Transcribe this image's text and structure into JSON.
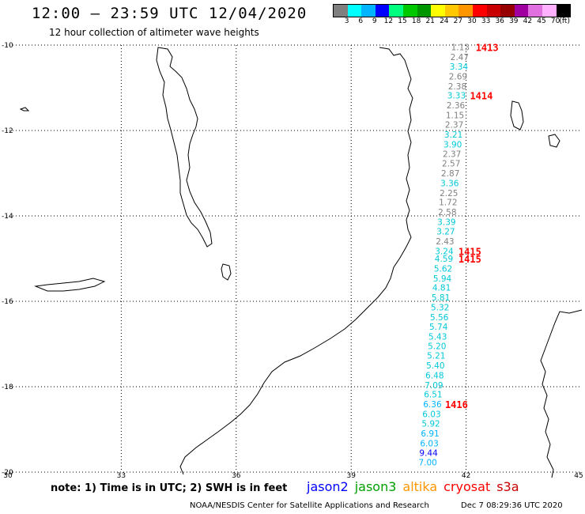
{
  "header": {
    "title": "12:00 – 23:59 UTC 12/04/2020",
    "subtitle": "12 hour collection of altimeter wave heights"
  },
  "legend": {
    "colors": [
      "#7f7f7f",
      "#00ffff",
      "#00b4ff",
      "#0000ff",
      "#00ff7f",
      "#00c800",
      "#009600",
      "#ffff00",
      "#ffc800",
      "#ff9600",
      "#ff0000",
      "#c80000",
      "#960000",
      "#a000a0",
      "#e070e0",
      "#ffb0ff",
      "#000000"
    ],
    "labels": [
      "3",
      "6",
      "9",
      "12",
      "15",
      "18",
      "21",
      "24",
      "27",
      "30",
      "33",
      "36",
      "39",
      "42",
      "45",
      "70",
      "(ft)"
    ]
  },
  "axes": {
    "lon_labels": [
      "30",
      "33",
      "36",
      "39",
      "42",
      "45"
    ],
    "lat_labels": [
      "-10",
      "-12",
      "-14",
      "-16",
      "-18",
      "-20"
    ]
  },
  "observations": [
    {
      "v": "1.13",
      "c": "#808080",
      "lat": -10.05,
      "lon": 41.85
    },
    {
      "v": "2.47",
      "c": "#808080",
      "lat": -10.28,
      "lon": 41.83
    },
    {
      "v": "3.34",
      "c": "#00c8d8",
      "lat": -10.5,
      "lon": 41.81
    },
    {
      "v": "2.69",
      "c": "#808080",
      "lat": -10.73,
      "lon": 41.79
    },
    {
      "v": "2.38",
      "c": "#808080",
      "lat": -10.96,
      "lon": 41.77
    },
    {
      "v": "3.33",
      "c": "#00c8d8",
      "lat": -11.18,
      "lon": 41.75
    },
    {
      "v": "2.36",
      "c": "#808080",
      "lat": -11.41,
      "lon": 41.73
    },
    {
      "v": "1.15",
      "c": "#808080",
      "lat": -11.64,
      "lon": 41.71
    },
    {
      "v": "2.37",
      "c": "#808080",
      "lat": -11.86,
      "lon": 41.69
    },
    {
      "v": "3.21",
      "c": "#00c8d8",
      "lat": -12.09,
      "lon": 41.67
    },
    {
      "v": "3.90",
      "c": "#00c8d8",
      "lat": -12.32,
      "lon": 41.65
    },
    {
      "v": "2.37",
      "c": "#808080",
      "lat": -12.55,
      "lon": 41.63
    },
    {
      "v": "2.57",
      "c": "#808080",
      "lat": -12.77,
      "lon": 41.61
    },
    {
      "v": "2.87",
      "c": "#808080",
      "lat": -13.0,
      "lon": 41.59
    },
    {
      "v": "3.36",
      "c": "#00c8d8",
      "lat": -13.23,
      "lon": 41.57
    },
    {
      "v": "2.25",
      "c": "#808080",
      "lat": -13.46,
      "lon": 41.55
    },
    {
      "v": "1.72",
      "c": "#808080",
      "lat": -13.68,
      "lon": 41.53
    },
    {
      "v": "2.58",
      "c": "#808080",
      "lat": -13.91,
      "lon": 41.51
    },
    {
      "v": "3.39",
      "c": "#00c8d8",
      "lat": -14.14,
      "lon": 41.49
    },
    {
      "v": "3.27",
      "c": "#00c8d8",
      "lat": -14.36,
      "lon": 41.47
    },
    {
      "v": "2.43",
      "c": "#808080",
      "lat": -14.59,
      "lon": 41.45
    },
    {
      "v": "3.24",
      "c": "#00c8d8",
      "lat": -14.82,
      "lon": 41.43
    },
    {
      "v": "4.59",
      "c": "#00c8d8",
      "lat": -15.0,
      "lon": 41.42
    },
    {
      "v": "5.62",
      "c": "#00c8d8",
      "lat": -15.23,
      "lon": 41.4
    },
    {
      "v": "5.94",
      "c": "#00c8d8",
      "lat": -15.46,
      "lon": 41.38
    },
    {
      "v": "4.81",
      "c": "#00c8d8",
      "lat": -15.68,
      "lon": 41.36
    },
    {
      "v": "5.81",
      "c": "#00c8d8",
      "lat": -15.91,
      "lon": 41.34
    },
    {
      "v": "5.32",
      "c": "#00c8d8",
      "lat": -16.14,
      "lon": 41.32
    },
    {
      "v": "5.56",
      "c": "#00c8d8",
      "lat": -16.37,
      "lon": 41.3
    },
    {
      "v": "5.74",
      "c": "#00c8d8",
      "lat": -16.59,
      "lon": 41.28
    },
    {
      "v": "5.43",
      "c": "#00c8d8",
      "lat": -16.82,
      "lon": 41.26
    },
    {
      "v": "5.20",
      "c": "#00c8d8",
      "lat": -17.05,
      "lon": 41.24
    },
    {
      "v": "5.21",
      "c": "#00c8d8",
      "lat": -17.27,
      "lon": 41.22
    },
    {
      "v": "5.40",
      "c": "#00c8d8",
      "lat": -17.5,
      "lon": 41.2
    },
    {
      "v": "6.48",
      "c": "#00c8d8",
      "lat": -17.73,
      "lon": 41.18
    },
    {
      "v": "7.09",
      "c": "#00c8d8",
      "lat": -17.96,
      "lon": 41.16
    },
    {
      "v": "6.51",
      "c": "#00c8d8",
      "lat": -18.18,
      "lon": 41.14
    },
    {
      "v": "6.36",
      "c": "#00b4ff",
      "lat": -18.41,
      "lon": 41.12
    },
    {
      "v": "6.03",
      "c": "#00c8d8",
      "lat": -18.64,
      "lon": 41.1
    },
    {
      "v": "5.92",
      "c": "#00c8d8",
      "lat": -18.86,
      "lon": 41.08
    },
    {
      "v": "6.91",
      "c": "#00b4ff",
      "lat": -19.09,
      "lon": 41.06
    },
    {
      "v": "6.03",
      "c": "#00b4ff",
      "lat": -19.32,
      "lon": 41.04
    },
    {
      "v": "9.44",
      "c": "#0000ff",
      "lat": -19.55,
      "lon": 41.02
    },
    {
      "v": "7.00",
      "c": "#00b4ff",
      "lat": -19.77,
      "lon": 41.0
    }
  ],
  "time_markers": [
    {
      "t": "1413",
      "lat": -10.05,
      "lon": 42.25
    },
    {
      "t": "1414",
      "lat": -11.18,
      "lon": 42.1
    },
    {
      "t": "1415",
      "lat": -14.82,
      "lon": 41.8
    },
    {
      "t": "1415",
      "lat": -15.0,
      "lon": 41.8
    },
    {
      "t": "1416",
      "lat": -18.41,
      "lon": 41.45
    }
  ],
  "footer": {
    "note": "note: 1) Time is in UTC; 2) SWH is in feet",
    "satellites": [
      {
        "name": "jason2",
        "color": "#0000ff"
      },
      {
        "name": "jason3",
        "color": "#00a000"
      },
      {
        "name": "altika",
        "color": "#ff9600"
      },
      {
        "name": "cryosat",
        "color": "#ff0000"
      },
      {
        "name": "s3a",
        "color": "#c80000"
      }
    ],
    "credit": "NOAA/NESDIS Center for Satellite Applications and Research",
    "timestamp": "Dec  7 08:29:36 UTC 2020"
  }
}
